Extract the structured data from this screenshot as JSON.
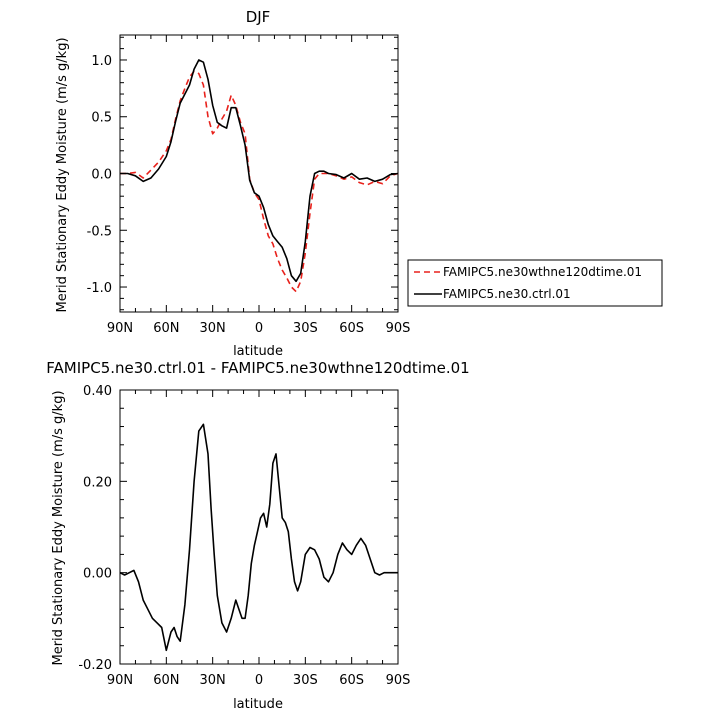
{
  "chart_data": [
    {
      "type": "line",
      "title": "DJF",
      "xlabel": "latitude",
      "ylabel": "Merid Stationary Eddy Moisture (m/s g/kg)",
      "x_ticks": [
        {
          "x": 90,
          "label": "90N"
        },
        {
          "x": 60,
          "label": "60N"
        },
        {
          "x": 30,
          "label": "30N"
        },
        {
          "x": 0,
          "label": "0"
        },
        {
          "x": -30,
          "label": "30S"
        },
        {
          "x": -60,
          "label": "60S"
        },
        {
          "x": -90,
          "label": "90S"
        }
      ],
      "xlim": [
        90,
        -90
      ],
      "y_ticks": [
        {
          "y": 1.0,
          "label": "1.0"
        },
        {
          "y": 0.5,
          "label": "0.5"
        },
        {
          "y": 0.0,
          "label": "0.0"
        },
        {
          "y": -0.5,
          "label": "-0.5"
        },
        {
          "y": -1.0,
          "label": "-1.0"
        }
      ],
      "ylim": [
        -1.22,
        1.22
      ],
      "legend": "right",
      "series": [
        {
          "name": "FAMIPC5.ne30wthne120dtime.01",
          "color": "#e8211b",
          "dash": "dashed",
          "x": [
            90,
            85,
            80,
            75,
            70,
            65,
            60,
            57,
            54,
            51,
            48,
            45,
            42,
            39,
            36,
            33,
            30,
            27,
            24,
            21,
            18,
            15,
            12,
            9,
            6,
            3,
            0,
            -3,
            -6,
            -9,
            -12,
            -15,
            -18,
            -21,
            -24,
            -27,
            -30,
            -33,
            -36,
            -39,
            -42,
            -45,
            -50,
            -55,
            -60,
            -65,
            -70,
            -75,
            -80,
            -85,
            -90
          ],
          "y": [
            0,
            0,
            0.01,
            -0.04,
            0.03,
            0.1,
            0.2,
            0.3,
            0.48,
            0.64,
            0.75,
            0.85,
            0.9,
            0.88,
            0.78,
            0.5,
            0.35,
            0.4,
            0.48,
            0.55,
            0.69,
            0.6,
            0.45,
            0.35,
            -0.05,
            -0.17,
            -0.23,
            -0.4,
            -0.55,
            -0.62,
            -0.75,
            -0.85,
            -0.92,
            -1.0,
            -1.04,
            -0.95,
            -0.7,
            -0.35,
            -0.05,
            0,
            0,
            0,
            -0.02,
            -0.05,
            -0.03,
            -0.08,
            -0.1,
            -0.07,
            -0.09,
            -0.02,
            0
          ]
        },
        {
          "name": "FAMIPC5.ne30.ctrl.01",
          "color": "#000000",
          "dash": "solid",
          "x": [
            90,
            85,
            80,
            75,
            70,
            65,
            60,
            57,
            54,
            51,
            48,
            45,
            42,
            39,
            36,
            33,
            30,
            27,
            24,
            21,
            18,
            15,
            12,
            9,
            6,
            3,
            0,
            -3,
            -6,
            -9,
            -12,
            -15,
            -18,
            -21,
            -24,
            -27,
            -30,
            -33,
            -36,
            -39,
            -42,
            -45,
            -50,
            -55,
            -60,
            -65,
            -70,
            -75,
            -80,
            -85,
            -90
          ],
          "y": [
            0,
            0,
            -0.02,
            -0.07,
            -0.04,
            0.04,
            0.15,
            0.28,
            0.46,
            0.62,
            0.7,
            0.78,
            0.92,
            1.0,
            0.98,
            0.83,
            0.6,
            0.45,
            0.42,
            0.4,
            0.58,
            0.58,
            0.42,
            0.25,
            -0.06,
            -0.17,
            -0.2,
            -0.3,
            -0.45,
            -0.55,
            -0.6,
            -0.65,
            -0.75,
            -0.9,
            -0.95,
            -0.88,
            -0.6,
            -0.2,
            0,
            0.02,
            0.02,
            0,
            -0.01,
            -0.04,
            0,
            -0.05,
            -0.04,
            -0.07,
            -0.05,
            -0.01,
            0
          ]
        }
      ]
    },
    {
      "type": "line",
      "title": "FAMIPC5.ne30.ctrl.01 - FAMIPC5.ne30wthne120dtime.01",
      "xlabel": "latitude",
      "ylabel": "Merid Stationary Eddy Moisture (m/s g/kg)",
      "x_ticks": [
        {
          "x": 90,
          "label": "90N"
        },
        {
          "x": 60,
          "label": "60N"
        },
        {
          "x": 30,
          "label": "30N"
        },
        {
          "x": 0,
          "label": "0"
        },
        {
          "x": -30,
          "label": "30S"
        },
        {
          "x": -60,
          "label": "60S"
        },
        {
          "x": -90,
          "label": "90S"
        }
      ],
      "xlim": [
        90,
        -90
      ],
      "y_ticks": [
        {
          "y": 0.4,
          "label": "0.40"
        },
        {
          "y": 0.2,
          "label": "0.20"
        },
        {
          "y": 0.0,
          "label": "0.00"
        },
        {
          "y": -0.2,
          "label": "-0.20"
        }
      ],
      "ylim": [
        -0.2,
        0.4
      ],
      "series": [
        {
          "name": "",
          "color": "#000000",
          "dash": "solid",
          "x": [
            90,
            87,
            84,
            81,
            78,
            75,
            72,
            69,
            66,
            63,
            60,
            57,
            55,
            53,
            51,
            48,
            45,
            42,
            39,
            36,
            33,
            31,
            29,
            27,
            24,
            21,
            18,
            15,
            13,
            11,
            9,
            7,
            5,
            3,
            1,
            -1,
            -3,
            -5,
            -7,
            -9,
            -11,
            -13,
            -15,
            -17,
            -19,
            -21,
            -23,
            -25,
            -27,
            -30,
            -33,
            -36,
            -39,
            -42,
            -45,
            -48,
            -51,
            -54,
            -57,
            -60,
            -63,
            -66,
            -69,
            -72,
            -75,
            -78,
            -81,
            -84,
            -87,
            -90
          ],
          "y": [
            0,
            -0.005,
            0.0,
            0.005,
            -0.02,
            -0.06,
            -0.08,
            -0.1,
            -0.11,
            -0.12,
            -0.17,
            -0.13,
            -0.12,
            -0.14,
            -0.15,
            -0.07,
            0.05,
            0.2,
            0.31,
            0.325,
            0.26,
            0.14,
            0.04,
            -0.05,
            -0.11,
            -0.13,
            -0.1,
            -0.06,
            -0.08,
            -0.1,
            -0.1,
            -0.05,
            0.02,
            0.06,
            0.09,
            0.12,
            0.13,
            0.1,
            0.15,
            0.24,
            0.26,
            0.19,
            0.12,
            0.11,
            0.09,
            0.03,
            -0.02,
            -0.04,
            -0.02,
            0.04,
            0.055,
            0.05,
            0.03,
            -0.01,
            -0.02,
            0.0,
            0.04,
            0.065,
            0.05,
            0.04,
            0.06,
            0.075,
            0.06,
            0.03,
            0.0,
            -0.005,
            0,
            0,
            0,
            0
          ]
        }
      ]
    }
  ]
}
